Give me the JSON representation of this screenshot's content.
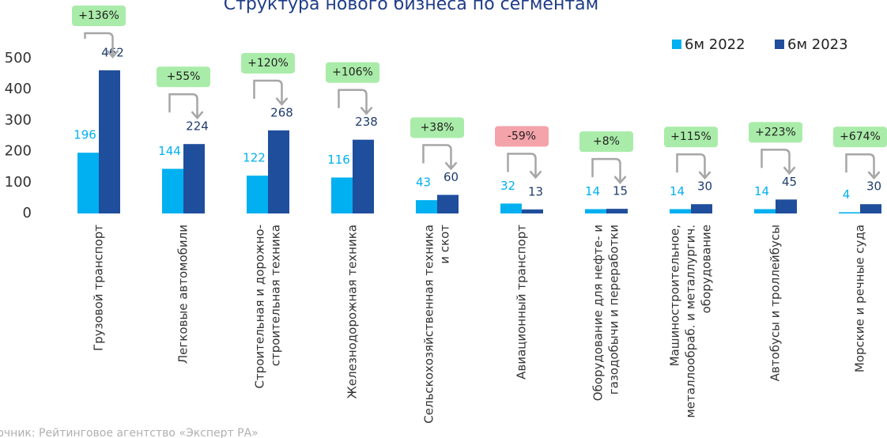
{
  "chart_data": {
    "type": "bar",
    "title": "Структура нового бизнеса по сегментам",
    "source": "Источник: Рейтинговое агентство «Эксперт РА»",
    "categories": [
      [
        "Грузовой транспорт"
      ],
      [
        "Легковые автомобили"
      ],
      [
        "Строительная и дорожно-",
        "строительная техника"
      ],
      [
        "Железнодорожная техника"
      ],
      [
        "Сельскохозяйственная техника",
        "и скот"
      ],
      [
        "Авиационный транспорт"
      ],
      [
        "Оборудование для нефте- и",
        "газодобычи и переработки"
      ],
      [
        "Машиностроительное,",
        "металлообраб. и металлургич.",
        "оборудование"
      ],
      [
        "Автобусы и троллейбусы"
      ],
      [
        "Морские и речные суда"
      ]
    ],
    "series": [
      {
        "name": "6м 2022",
        "color": "#00b0f0",
        "values": [
          196,
          144,
          122,
          116,
          43,
          32,
          14,
          14,
          14,
          4
        ]
      },
      {
        "name": "6м 2023",
        "color": "#1f4e9c",
        "values": [
          462,
          224,
          268,
          238,
          60,
          13,
          15,
          30,
          45,
          30
        ]
      }
    ],
    "annotations": [
      {
        "text": "+136%",
        "color": "#a9eca9"
      },
      {
        "text": "+55%",
        "color": "#a9eca9"
      },
      {
        "text": "+120%",
        "color": "#a9eca9"
      },
      {
        "text": "+106%",
        "color": "#a9eca9"
      },
      {
        "text": "+38%",
        "color": "#a9eca9"
      },
      {
        "text": "-59%",
        "color": "#f4a3aa"
      },
      {
        "text": "+8%",
        "color": "#a9eca9"
      },
      {
        "text": "+115%",
        "color": "#a9eca9"
      },
      {
        "text": "+223%",
        "color": "#a9eca9"
      },
      {
        "text": "+674%",
        "color": "#a9eca9"
      }
    ],
    "ylim": [
      0,
      500
    ],
    "yticks": [
      0,
      100,
      200,
      300,
      400,
      500
    ],
    "grid": false,
    "legend": "top-right"
  }
}
